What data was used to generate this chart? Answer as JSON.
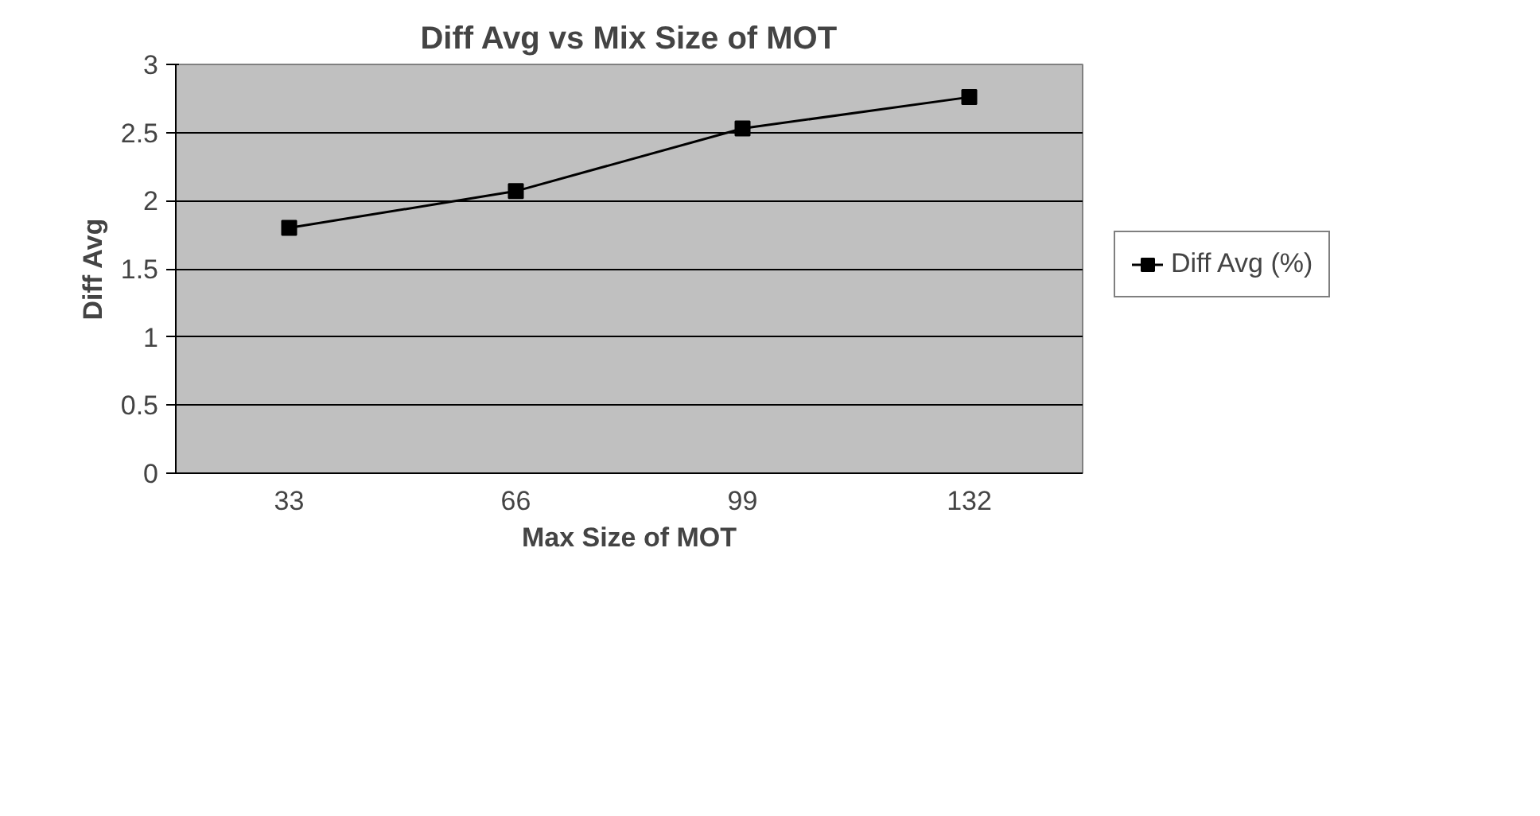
{
  "chart_data": {
    "type": "line",
    "title": "Diff Avg vs Mix Size of MOT",
    "xlabel": "Max Size of MOT",
    "ylabel": "Diff Avg",
    "categories": [
      "33",
      "66",
      "99",
      "132"
    ],
    "series": [
      {
        "name": "Diff Avg (%)",
        "color": "#000000",
        "values": [
          1.8,
          2.07,
          2.53,
          2.76
        ]
      }
    ],
    "ylim": [
      0,
      3
    ],
    "yticks": [
      0,
      0.5,
      1,
      1.5,
      2,
      2.5,
      3
    ],
    "grid": "y",
    "legend": "right",
    "marker": "square",
    "line_style": "solid"
  }
}
